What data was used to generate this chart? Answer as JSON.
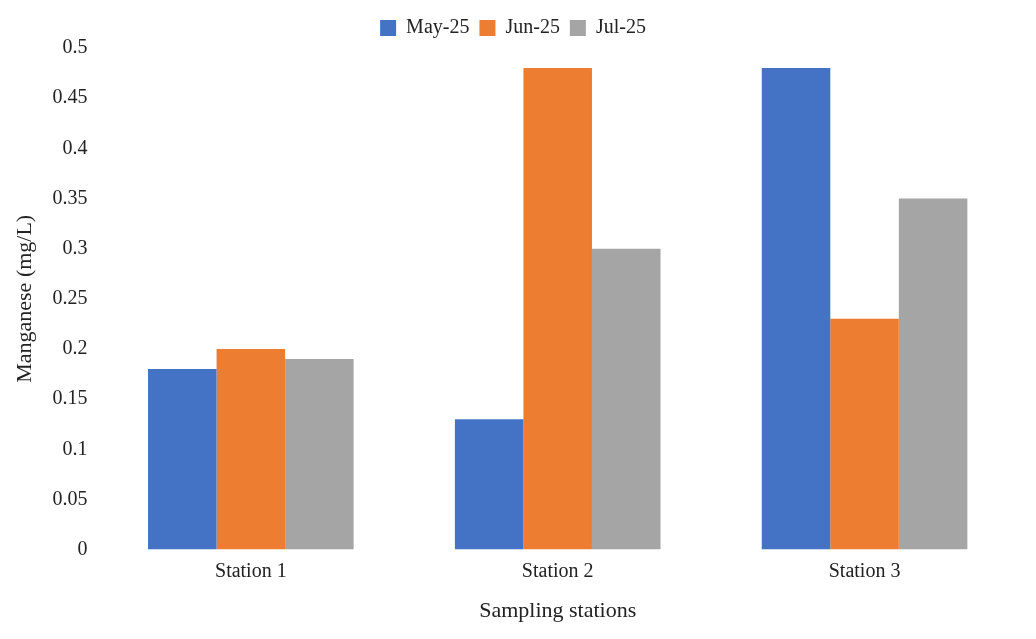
{
  "chart_data": {
    "type": "bar",
    "xlabel": "Sampling stations",
    "ylabel": "Manganese (mg/L)",
    "categories": [
      "Station 1",
      "Station 2",
      "Station 3"
    ],
    "series": [
      {
        "name": "May-25",
        "color": "#4472c4",
        "values": [
          0.18,
          0.13,
          0.48
        ]
      },
      {
        "name": "Jun-25",
        "color": "#ed7d31",
        "values": [
          0.2,
          0.48,
          0.23
        ]
      },
      {
        "name": "Jul-25",
        "color": "#a5a5a5",
        "values": [
          0.19,
          0.3,
          0.35
        ]
      }
    ],
    "ylim": [
      0,
      0.5
    ],
    "yticks": [
      0,
      0.05,
      0.1,
      0.15,
      0.2,
      0.25,
      0.3,
      0.35,
      0.4,
      0.45,
      0.5
    ],
    "grid": false,
    "legend": "top"
  }
}
